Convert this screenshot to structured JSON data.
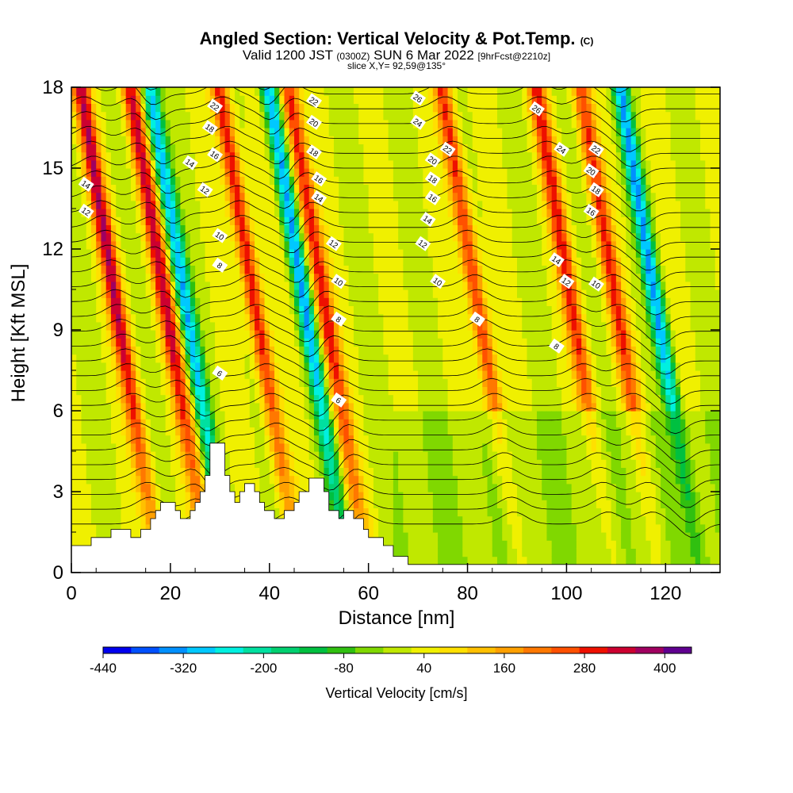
{
  "title": {
    "main": "Angled Section: Vertical Velocity & Pot.Temp.",
    "main_suffix": "(C)",
    "valid_prefix": "Valid 1200 JST",
    "valid_utc": "(0300Z)",
    "valid_date": "SUN 6 Mar 2022",
    "forecast": "[9hrFcst@2210z]",
    "slice": "slice X,Y= 92,59@135°"
  },
  "chart_data": {
    "type": "heatmap",
    "xlabel": "Distance [nm]",
    "ylabel": "Height [Kft MSL]",
    "xlim": [
      0,
      131
    ],
    "ylim": [
      0,
      18
    ],
    "x_ticks": [
      "0",
      "20",
      "40",
      "60",
      "80",
      "100",
      "120"
    ],
    "y_ticks": [
      "0",
      "3",
      "6",
      "9",
      "12",
      "15",
      "18"
    ],
    "colorbar": {
      "label": "Vertical Velocity [cm/s]",
      "tick_labels": [
        "-440",
        "-320",
        "-200",
        "-80",
        "40",
        "160",
        "280",
        "400"
      ],
      "tick_values": [
        -440,
        -320,
        -200,
        -80,
        40,
        160,
        280,
        400
      ],
      "range": [
        -440,
        440
      ],
      "colors": [
        "#0000ee",
        "#0050ff",
        "#0090ff",
        "#00c8ff",
        "#00f0e0",
        "#00e0a0",
        "#00d070",
        "#00c040",
        "#30c010",
        "#80d800",
        "#c0e800",
        "#f0f000",
        "#ffe000",
        "#ffc000",
        "#ffa000",
        "#ff7800",
        "#ff5000",
        "#ee1000",
        "#cc0030",
        "#a00060",
        "#600090"
      ]
    },
    "updraft_bands_nm": [
      14,
      24,
      42,
      56,
      87,
      106,
      115
    ],
    "downdraft_bands_nm": [
      28,
      52,
      123
    ],
    "terrain": [
      [
        0,
        1.0
      ],
      [
        4,
        1.0
      ],
      [
        4,
        1.3
      ],
      [
        8,
        1.3
      ],
      [
        8,
        1.6
      ],
      [
        12,
        1.6
      ],
      [
        12,
        1.3
      ],
      [
        14,
        1.3
      ],
      [
        14,
        1.6
      ],
      [
        16,
        1.6
      ],
      [
        16,
        2.0
      ],
      [
        17,
        2.0
      ],
      [
        17,
        2.3
      ],
      [
        18,
        2.3
      ],
      [
        18,
        2.6
      ],
      [
        21,
        2.6
      ],
      [
        21,
        2.3
      ],
      [
        22,
        2.3
      ],
      [
        22,
        2.0
      ],
      [
        24,
        2.0
      ],
      [
        24,
        2.3
      ],
      [
        25,
        2.3
      ],
      [
        25,
        2.6
      ],
      [
        26,
        2.6
      ],
      [
        26,
        3.0
      ],
      [
        27,
        3.0
      ],
      [
        27,
        3.6
      ],
      [
        28,
        3.6
      ],
      [
        28,
        4.8
      ],
      [
        31,
        4.8
      ],
      [
        31,
        3.6
      ],
      [
        32,
        3.6
      ],
      [
        32,
        3.0
      ],
      [
        33,
        3.0
      ],
      [
        33,
        2.6
      ],
      [
        34,
        2.6
      ],
      [
        34,
        3.0
      ],
      [
        35,
        3.0
      ],
      [
        35,
        3.3
      ],
      [
        37,
        3.3
      ],
      [
        37,
        3.0
      ],
      [
        38,
        3.0
      ],
      [
        38,
        2.6
      ],
      [
        39,
        2.6
      ],
      [
        39,
        2.3
      ],
      [
        41,
        2.3
      ],
      [
        41,
        2.0
      ],
      [
        43,
        2.0
      ],
      [
        43,
        2.3
      ],
      [
        45,
        2.3
      ],
      [
        45,
        2.6
      ],
      [
        46,
        2.6
      ],
      [
        46,
        3.0
      ],
      [
        48,
        3.0
      ],
      [
        48,
        3.5
      ],
      [
        51,
        3.5
      ],
      [
        51,
        3.0
      ],
      [
        52,
        3.0
      ],
      [
        52,
        2.3
      ],
      [
        54,
        2.3
      ],
      [
        54,
        2.0
      ],
      [
        55,
        2.0
      ],
      [
        55,
        2.3
      ],
      [
        57,
        2.3
      ],
      [
        57,
        2.0
      ],
      [
        59,
        2.0
      ],
      [
        59,
        1.6
      ],
      [
        60,
        1.6
      ],
      [
        60,
        1.3
      ],
      [
        63,
        1.3
      ],
      [
        63,
        1.0
      ],
      [
        65,
        1.0
      ],
      [
        65,
        0.6
      ],
      [
        68,
        0.6
      ],
      [
        68,
        0.3
      ],
      [
        131,
        0.3
      ]
    ],
    "contour_labels": [
      {
        "x": 29,
        "y": 17.3,
        "text": "22"
      },
      {
        "x": 28,
        "y": 16.5,
        "text": "18"
      },
      {
        "x": 29,
        "y": 15.5,
        "text": "16"
      },
      {
        "x": 24,
        "y": 15.2,
        "text": "14"
      },
      {
        "x": 3,
        "y": 14.4,
        "text": "14"
      },
      {
        "x": 3,
        "y": 13.4,
        "text": "12"
      },
      {
        "x": 27,
        "y": 14.2,
        "text": "12"
      },
      {
        "x": 30,
        "y": 12.5,
        "text": "10"
      },
      {
        "x": 30,
        "y": 11.4,
        "text": "8"
      },
      {
        "x": 30,
        "y": 7.4,
        "text": "6"
      },
      {
        "x": 49,
        "y": 17.5,
        "text": "22"
      },
      {
        "x": 49,
        "y": 16.7,
        "text": "20"
      },
      {
        "x": 49,
        "y": 15.6,
        "text": "18"
      },
      {
        "x": 50,
        "y": 14.6,
        "text": "16"
      },
      {
        "x": 50,
        "y": 13.9,
        "text": "14"
      },
      {
        "x": 53,
        "y": 12.2,
        "text": "12"
      },
      {
        "x": 54,
        "y": 10.8,
        "text": "10"
      },
      {
        "x": 54,
        "y": 9.4,
        "text": "8"
      },
      {
        "x": 54,
        "y": 6.4,
        "text": "6"
      },
      {
        "x": 70,
        "y": 17.6,
        "text": "26"
      },
      {
        "x": 70,
        "y": 16.7,
        "text": "24"
      },
      {
        "x": 76,
        "y": 15.7,
        "text": "22"
      },
      {
        "x": 73,
        "y": 15.3,
        "text": "20"
      },
      {
        "x": 73,
        "y": 14.6,
        "text": "18"
      },
      {
        "x": 73,
        "y": 13.9,
        "text": "16"
      },
      {
        "x": 72,
        "y": 13.1,
        "text": "14"
      },
      {
        "x": 71,
        "y": 12.2,
        "text": "12"
      },
      {
        "x": 74,
        "y": 10.8,
        "text": "10"
      },
      {
        "x": 82,
        "y": 9.4,
        "text": "8"
      },
      {
        "x": 94,
        "y": 17.2,
        "text": "26"
      },
      {
        "x": 99,
        "y": 15.7,
        "text": "24"
      },
      {
        "x": 106,
        "y": 15.7,
        "text": "22"
      },
      {
        "x": 105,
        "y": 14.9,
        "text": "20"
      },
      {
        "x": 106,
        "y": 14.2,
        "text": "18"
      },
      {
        "x": 105,
        "y": 13.4,
        "text": "16"
      },
      {
        "x": 98,
        "y": 11.6,
        "text": "14"
      },
      {
        "x": 100,
        "y": 10.8,
        "text": "12"
      },
      {
        "x": 106,
        "y": 10.7,
        "text": "10"
      },
      {
        "x": 98,
        "y": 8.4,
        "text": "8"
      }
    ]
  }
}
